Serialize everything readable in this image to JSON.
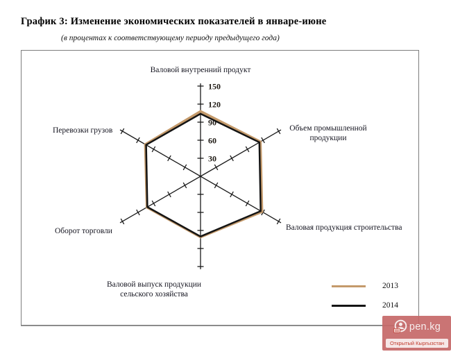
{
  "page": {
    "title": "График 3: Изменение экономических показателей в январе-июне",
    "subtitle": "(в процентах к соответствующему периоду предыдущего года)"
  },
  "chart_data": {
    "type": "radar",
    "axes_count": 6,
    "categories": [
      "Валовой внутренний продукт",
      "Объем промышленной продукции",
      "Валовая продукция строительства",
      "Валовой выпуск продукции сельского хозяйства",
      "Оборот торговли",
      "Перевозки грузов"
    ],
    "series": [
      {
        "name": "2013",
        "color": "#C49A6B",
        "values": [
          108,
          115,
          118,
          101,
          103,
          106
        ]
      },
      {
        "name": "2014",
        "color": "#141414",
        "values": [
          104,
          113,
          115.5,
          100,
          102,
          104.5
        ]
      }
    ],
    "radial_ticks": [
      30,
      60,
      90,
      120,
      150
    ],
    "rmax": 150,
    "axis_color": "#1a1a1a",
    "grid": "radial-axes-with-ticks-only",
    "tick_labels_axis": "top",
    "legend_position": "bottom-right",
    "title": "График 3: Изменение экономических показателей в январе-июне",
    "subtitle": "(в процентах к соответствующему периоду предыдущего года)"
  },
  "legend": {
    "items": [
      {
        "label": "2013",
        "color": "#C49A6B"
      },
      {
        "label": "2014",
        "color": "#141414"
      }
    ]
  },
  "watermark": {
    "logo_text": "pen.kg",
    "caption": "Открытый Кыргызстан",
    "bg_color": "#c66969",
    "icon": "person-circle-logo"
  }
}
